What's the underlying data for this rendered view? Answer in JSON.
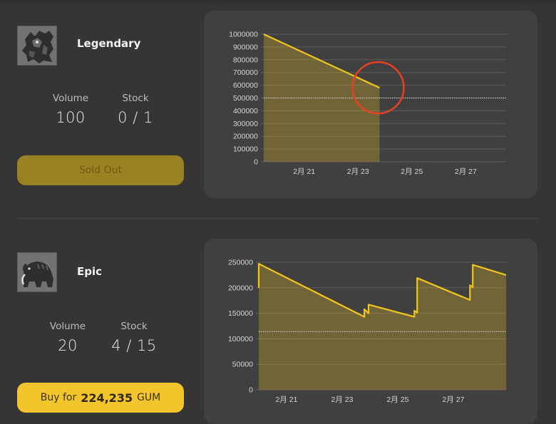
{
  "items": [
    {
      "rarity": "Legendary",
      "volume_label": "Volume",
      "volume_value": "100",
      "stock_label": "Stock",
      "stock_value": "0 / 1",
      "button_label": "Sold Out",
      "thumb_icon": "warrior-icon",
      "chart_data": {
        "type": "area",
        "x_tick_labels": [
          "2月 21",
          "2月 23",
          "2月 25",
          "2月 27"
        ],
        "y_ticks": [
          0,
          100000,
          200000,
          300000,
          400000,
          500000,
          600000,
          700000,
          800000,
          900000,
          1000000
        ],
        "ylim": [
          0,
          1000000
        ],
        "x_range_days": [
          19.5,
          28.5
        ],
        "reference_line": 500000,
        "series": [
          {
            "points": [
              [
                19.5,
                1000000
              ],
              [
                23.8,
                580000
              ]
            ]
          }
        ],
        "annotation": "red-circle-highlight",
        "line_color": "#f2c51f"
      }
    },
    {
      "rarity": "Epic",
      "volume_label": "Volume",
      "volume_value": "20",
      "stock_label": "Stock",
      "stock_value": "4 / 15",
      "button_prefix": "Buy for",
      "button_amount": "224,235",
      "button_suffix": "GUM",
      "thumb_icon": "mammoth-icon",
      "chart_data": {
        "type": "area",
        "x_tick_labels": [
          "2月 21",
          "2月 23",
          "2月 25",
          "2月 27"
        ],
        "y_ticks": [
          0,
          50000,
          100000,
          150000,
          200000,
          250000
        ],
        "ylim": [
          0,
          250000
        ],
        "x_range_days": [
          20.0,
          28.9
        ],
        "reference_line": 114000,
        "series": [
          {
            "points": [
              [
                20.0,
                200000
              ],
              [
                20.0,
                247000
              ],
              [
                23.8,
                143000
              ],
              [
                23.8,
                158000
              ],
              [
                23.95,
                150000
              ],
              [
                23.95,
                167000
              ],
              [
                25.6,
                143000
              ],
              [
                25.6,
                155000
              ],
              [
                25.7,
                151000
              ],
              [
                25.7,
                219000
              ],
              [
                27.6,
                176000
              ],
              [
                27.6,
                205000
              ],
              [
                27.7,
                201000
              ],
              [
                27.7,
                245000
              ],
              [
                28.9,
                225000
              ]
            ]
          }
        ],
        "line_color": "#f2c51f"
      }
    }
  ]
}
